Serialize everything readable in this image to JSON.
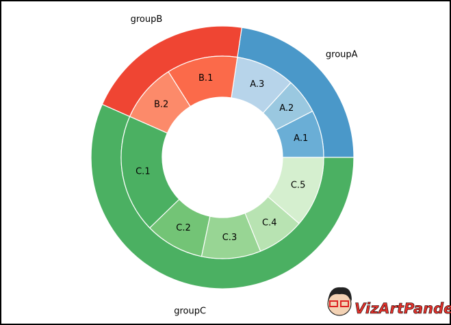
{
  "chart_data": {
    "type": "nested-donut",
    "groups": {
      "labels": [
        "groupA",
        "groupB",
        "groupC"
      ],
      "values": [
        12,
        11,
        30
      ],
      "colors": [
        "#4a98c9",
        "#ef4533",
        "#4bb062"
      ]
    },
    "subgroups": {
      "labels": [
        "A.1",
        "A.2",
        "A.3",
        "B.1",
        "B.2",
        "C.1",
        "C.2",
        "C.3",
        "C.4",
        "C.5"
      ],
      "values": [
        4,
        3,
        5,
        6,
        5,
        10,
        5,
        5,
        4,
        6
      ],
      "colors": [
        "#6aaed6",
        "#9ac8e0",
        "#b7d4ea",
        "#fb6a4a",
        "#fc8a6a",
        "#4bb062",
        "#73c476",
        "#98d594",
        "#b8e3b2",
        "#d5efcf"
      ]
    },
    "watermark": "VizArtPandey"
  }
}
